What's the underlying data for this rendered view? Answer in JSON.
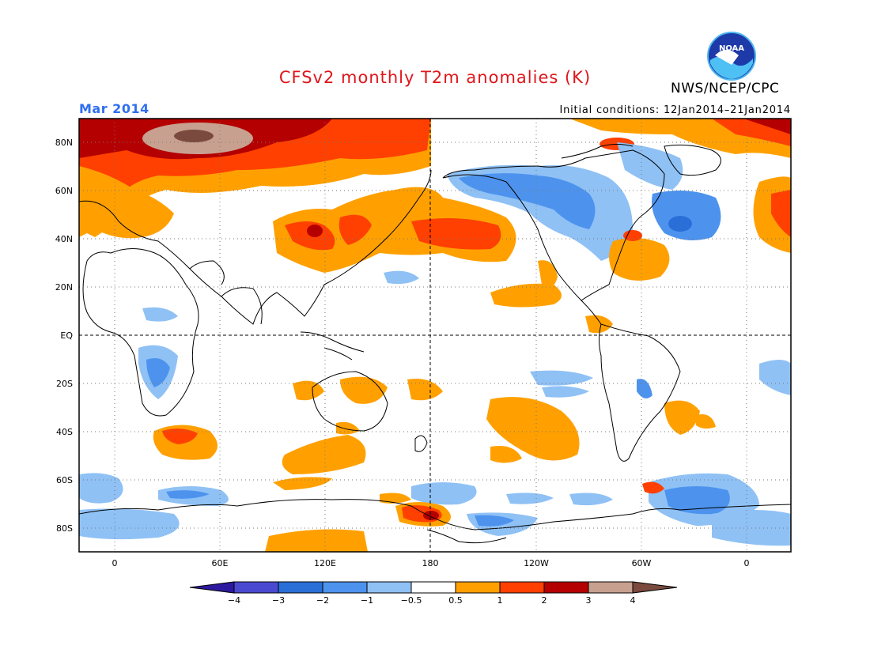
{
  "title": "CFSv2 monthly T2m anomalies (K)",
  "valid_month": "Mar 2014",
  "initial_conditions": "Initial conditions: 12Jan2014–21Jan2014",
  "agency": "NWS/NCEP/CPC",
  "logo_text": "NOAA",
  "lat_labels": [
    "80N",
    "60N",
    "40N",
    "20N",
    "EQ",
    "20S",
    "40S",
    "60S",
    "80S"
  ],
  "lon_labels": [
    "0",
    "60E",
    "120E",
    "180",
    "120W",
    "60W",
    "0"
  ],
  "colorbar": {
    "labels": [
      "−4",
      "−3",
      "−2",
      "−1",
      "−0.5",
      "0.5",
      "1",
      "2",
      "3",
      "4"
    ],
    "colors": [
      "#2d19a0",
      "#4a4ad0",
      "#2a6fd8",
      "#4d93ee",
      "#8fc1f5",
      "#ffffff",
      "#ffa000",
      "#ff4000",
      "#b40000",
      "#c8a090",
      "#7a4a3e"
    ]
  }
}
